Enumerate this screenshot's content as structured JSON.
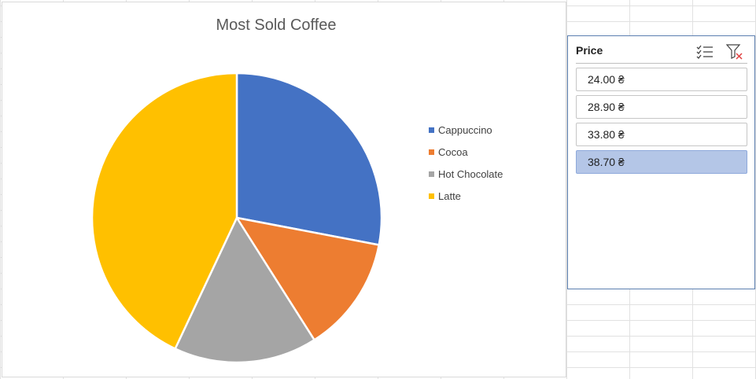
{
  "chart_data": {
    "type": "pie",
    "title": "Most Sold Coffee",
    "categories": [
      "Cappuccino",
      "Cocoa",
      "Hot Chocolate",
      "Latte"
    ],
    "values": [
      28,
      13,
      16,
      43
    ],
    "colors": [
      "#4472c4",
      "#ed7d31",
      "#a5a5a5",
      "#ffc000"
    ],
    "legend_position": "right"
  },
  "slicer": {
    "title": "Price",
    "icons": {
      "multiselect": "multi-select-icon",
      "clear_filter": "clear-filter-icon"
    },
    "items": [
      {
        "label": "24.00 ₴",
        "selected": false
      },
      {
        "label": "28.90 ₴",
        "selected": false
      },
      {
        "label": "33.80 ₴",
        "selected": false
      },
      {
        "label": "38.70 ₴",
        "selected": true
      }
    ]
  }
}
